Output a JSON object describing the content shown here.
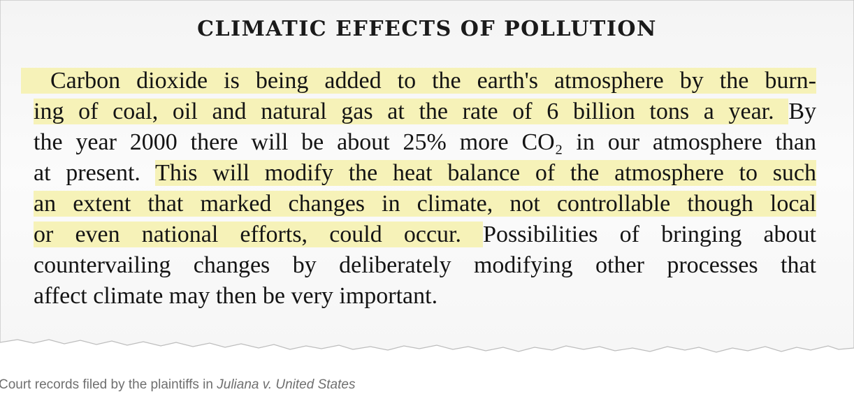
{
  "clipping": {
    "title": "CLIMATIC EFFECTS OF POLLUTION",
    "lines": [
      {
        "a": "Carbon dioxide is being added to the earth's atmosphere by the burn-",
        "b": "",
        "c": ""
      },
      {
        "a": "ing of coal, oil and natural gas at the rate of 6 billion tons a year.",
        "b": "By",
        "c": ""
      },
      {
        "a": "the year 2000 there will be about 25% more CO₂ in our atmosphere than",
        "b": "",
        "c": ""
      },
      {
        "a": "at present.",
        "b": "This will modify the heat balance of the atmosphere to such",
        "c": ""
      },
      {
        "a": "an extent that marked changes in climate, not controllable though local",
        "b": "",
        "c": ""
      },
      {
        "a": "or even national efforts, could occur.",
        "b": "Possibilities of bringing about",
        "c": ""
      },
      {
        "a": "countervailing changes by deliberately modifying other processes that",
        "b": "",
        "c": ""
      },
      {
        "a": "affect climate may then be very important.",
        "b": "",
        "c": ""
      }
    ]
  },
  "caption": {
    "prefix": "Court records filed by the plaintiffs in ",
    "case_name": "Juliana v. United States"
  },
  "colors": {
    "highlight": "#f6f2b8",
    "paper": "#fafafa",
    "text": "#141414",
    "caption": "#6f6f6f"
  }
}
